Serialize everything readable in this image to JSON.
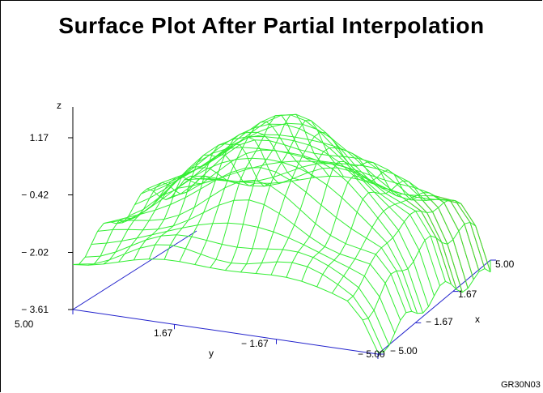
{
  "chart_data": {
    "type": "surface",
    "title": "Surface Plot After Partial Interpolation",
    "axes": {
      "x": {
        "label": "x",
        "ticks": [
          "− 5.00",
          "− 1.67",
          "1.67",
          "5.00"
        ],
        "range": [
          -5,
          5
        ]
      },
      "y": {
        "label": "y",
        "ticks": [
          "5.00",
          "1.67",
          "− 1.67",
          "− 5.00"
        ],
        "range": [
          -5,
          5
        ]
      },
      "z": {
        "label": "z",
        "ticks": [
          "1.17",
          "− 0.42",
          "− 2.02",
          "− 3.61"
        ],
        "range": [
          -3.61,
          1.17
        ]
      }
    },
    "grid_n": 21,
    "surface_color": "#33ee33",
    "underside_color": "#ee2222",
    "axis_color": "#2222cc"
  },
  "footnote": "GR30N03"
}
